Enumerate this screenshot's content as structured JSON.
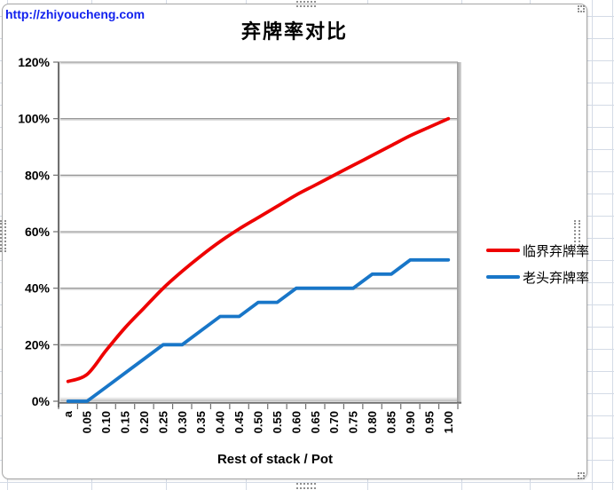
{
  "page": {
    "link_text": "http://zhiyoucheng.com",
    "link_color": "#1222ee"
  },
  "chart_data": {
    "type": "line",
    "title": "弃牌率对比",
    "x_axis_title": "Rest of stack / Pot",
    "categories": [
      "a",
      "0.05",
      "0.10",
      "0.15",
      "0.20",
      "0.25",
      "0.30",
      "0.35",
      "0.40",
      "0.45",
      "0.50",
      "0.55",
      "0.60",
      "0.65",
      "0.70",
      "0.75",
      "0.80",
      "0.85",
      "0.90",
      "0.95",
      "1.00"
    ],
    "y_tick_labels": [
      "0%",
      "20%",
      "40%",
      "60%",
      "80%",
      "100%",
      "120%"
    ],
    "ylim": [
      0,
      120
    ],
    "y_step": 20,
    "grid": true,
    "legend_position": "right",
    "series": [
      {
        "name": "临界弃牌率",
        "color": "#ee0000",
        "smooth": true,
        "values": [
          7,
          9.5,
          18,
          26,
          33,
          40,
          46,
          51.5,
          56.5,
          61,
          65,
          69,
          73,
          76.5,
          80,
          83.5,
          87,
          90.5,
          94,
          97,
          100
        ]
      },
      {
        "name": "老头弃牌率",
        "color": "#1876c8",
        "smooth": false,
        "values": [
          0,
          0,
          5,
          10,
          15,
          20,
          20,
          25,
          30,
          30,
          35,
          35,
          40,
          40,
          40,
          40,
          45,
          45,
          50,
          50,
          50
        ]
      }
    ]
  }
}
